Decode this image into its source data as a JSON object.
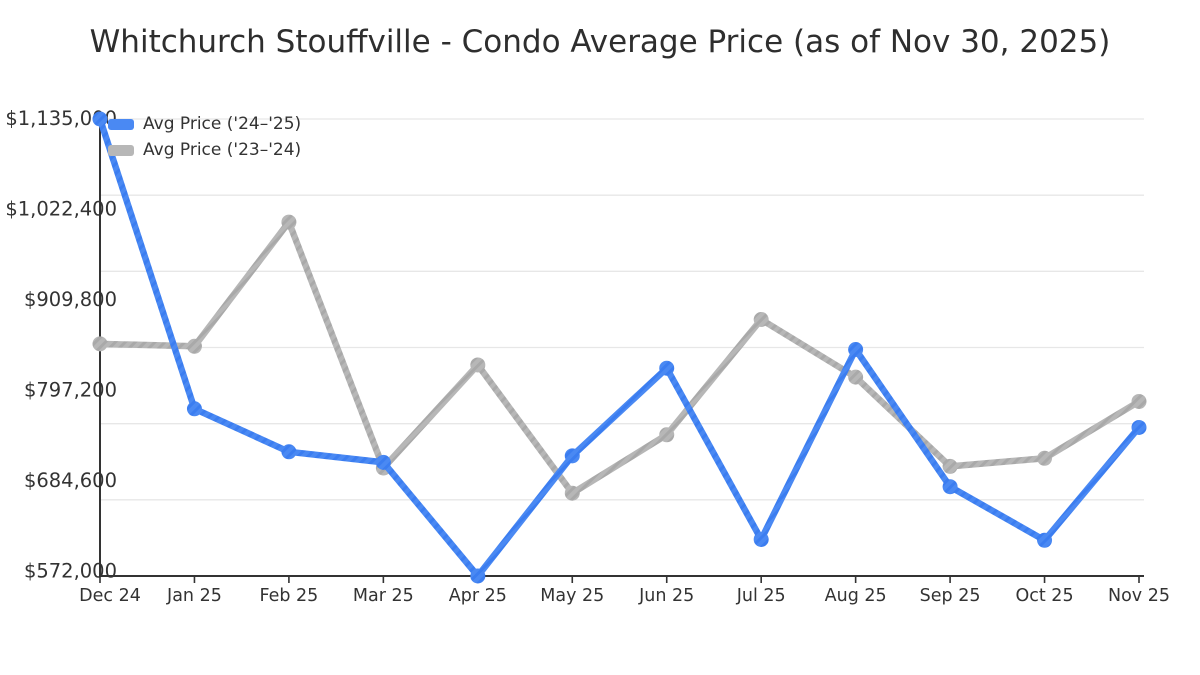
{
  "chart_data": {
    "type": "line",
    "title": "Whitchurch Stouffville - Condo Average Price (as of Nov 30, 2025)",
    "categories": [
      "Dec 24",
      "Jan 25",
      "Feb 25",
      "Mar 25",
      "Apr 25",
      "May 25",
      "Jun 25",
      "Jul 25",
      "Aug 25",
      "Sep 25",
      "Oct 25",
      "Nov 25"
    ],
    "series": [
      {
        "name": "Avg Price ('24–'25)",
        "color": "#4a89f3",
        "stripe_color": "#3b7df0",
        "values": [
          1135000,
          778000,
          725000,
          712000,
          572000,
          720000,
          828000,
          617000,
          851000,
          682000,
          616000,
          755000
        ]
      },
      {
        "name": "Avg Price ('23–'24)",
        "color": "#b7b7b7",
        "stripe_color": "#a9a9a9",
        "values": [
          858000,
          855000,
          1008000,
          705000,
          832000,
          674000,
          746000,
          888000,
          817000,
          707000,
          717000,
          787000
        ]
      }
    ],
    "y_tick_labels": [
      "$572,000",
      "$684,600",
      "$797,200",
      "$909,800",
      "$1,022,400",
      "$1,135,000"
    ],
    "y_min": 572000,
    "y_max": 1135000,
    "grid": true,
    "gridline_count": 7,
    "legend_position": "top-left",
    "axis_color": "#333333",
    "gridline_color": "#e7e7e7",
    "background_color": "#ffffff"
  }
}
